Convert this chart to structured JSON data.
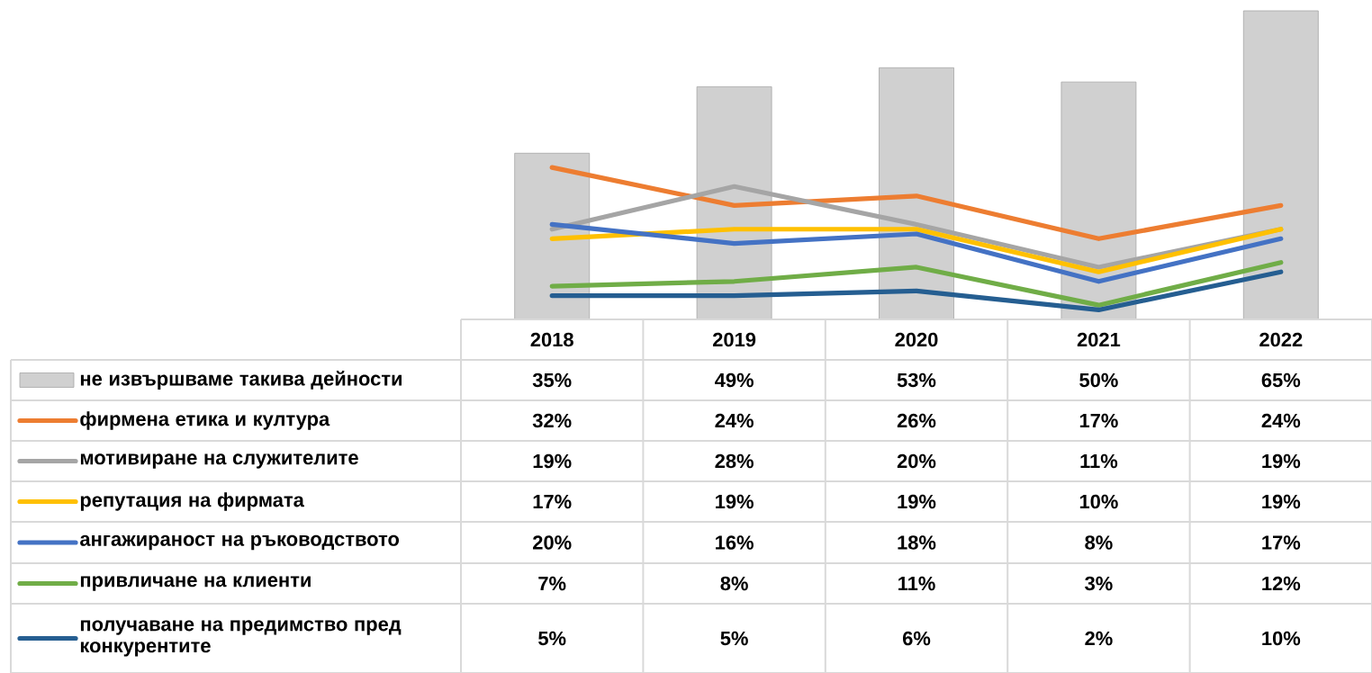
{
  "chart_data": {
    "type": "line",
    "categories": [
      "2018",
      "2019",
      "2020",
      "2021",
      "2022"
    ],
    "ylim": [
      0,
      65
    ],
    "legend": "bottom",
    "series": [
      {
        "name": "не извършваме такива дейности",
        "type": "bar",
        "color": "#d0d0d0",
        "values": [
          35,
          49,
          53,
          50,
          65
        ],
        "value_labels": [
          "35%",
          "49%",
          "53%",
          "50%",
          "65%"
        ]
      },
      {
        "name": "фирмена етика и култура",
        "color": "#ed7d31",
        "values": [
          32,
          24,
          26,
          17,
          24
        ],
        "value_labels": [
          "32%",
          "24%",
          "26%",
          "17%",
          "24%"
        ]
      },
      {
        "name": "мотивиране на служителите",
        "color": "#a5a5a5",
        "values": [
          19,
          28,
          20,
          11,
          19
        ],
        "value_labels": [
          "19%",
          "28%",
          "20%",
          "11%",
          "19%"
        ]
      },
      {
        "name": "репутация на фирмата",
        "color": "#ffc000",
        "values": [
          17,
          19,
          19,
          10,
          19
        ],
        "value_labels": [
          "17%",
          "19%",
          "19%",
          "10%",
          "19%"
        ]
      },
      {
        "name": "ангажираност на ръководството",
        "color": "#4472c4",
        "values": [
          20,
          16,
          18,
          8,
          17
        ],
        "value_labels": [
          "20%",
          "16%",
          "18%",
          "8%",
          "17%"
        ]
      },
      {
        "name": "привличане на клиенти",
        "color": "#70ad47",
        "values": [
          7,
          8,
          11,
          3,
          12
        ],
        "value_labels": [
          "7%",
          "8%",
          "11%",
          "3%",
          "12%"
        ]
      },
      {
        "name": "получаване на предимство пред конкурентите",
        "color": "#255e91",
        "values": [
          5,
          5,
          6,
          2,
          10
        ],
        "value_labels": [
          "5%",
          "5%",
          "6%",
          "2%",
          "10%"
        ]
      }
    ]
  }
}
